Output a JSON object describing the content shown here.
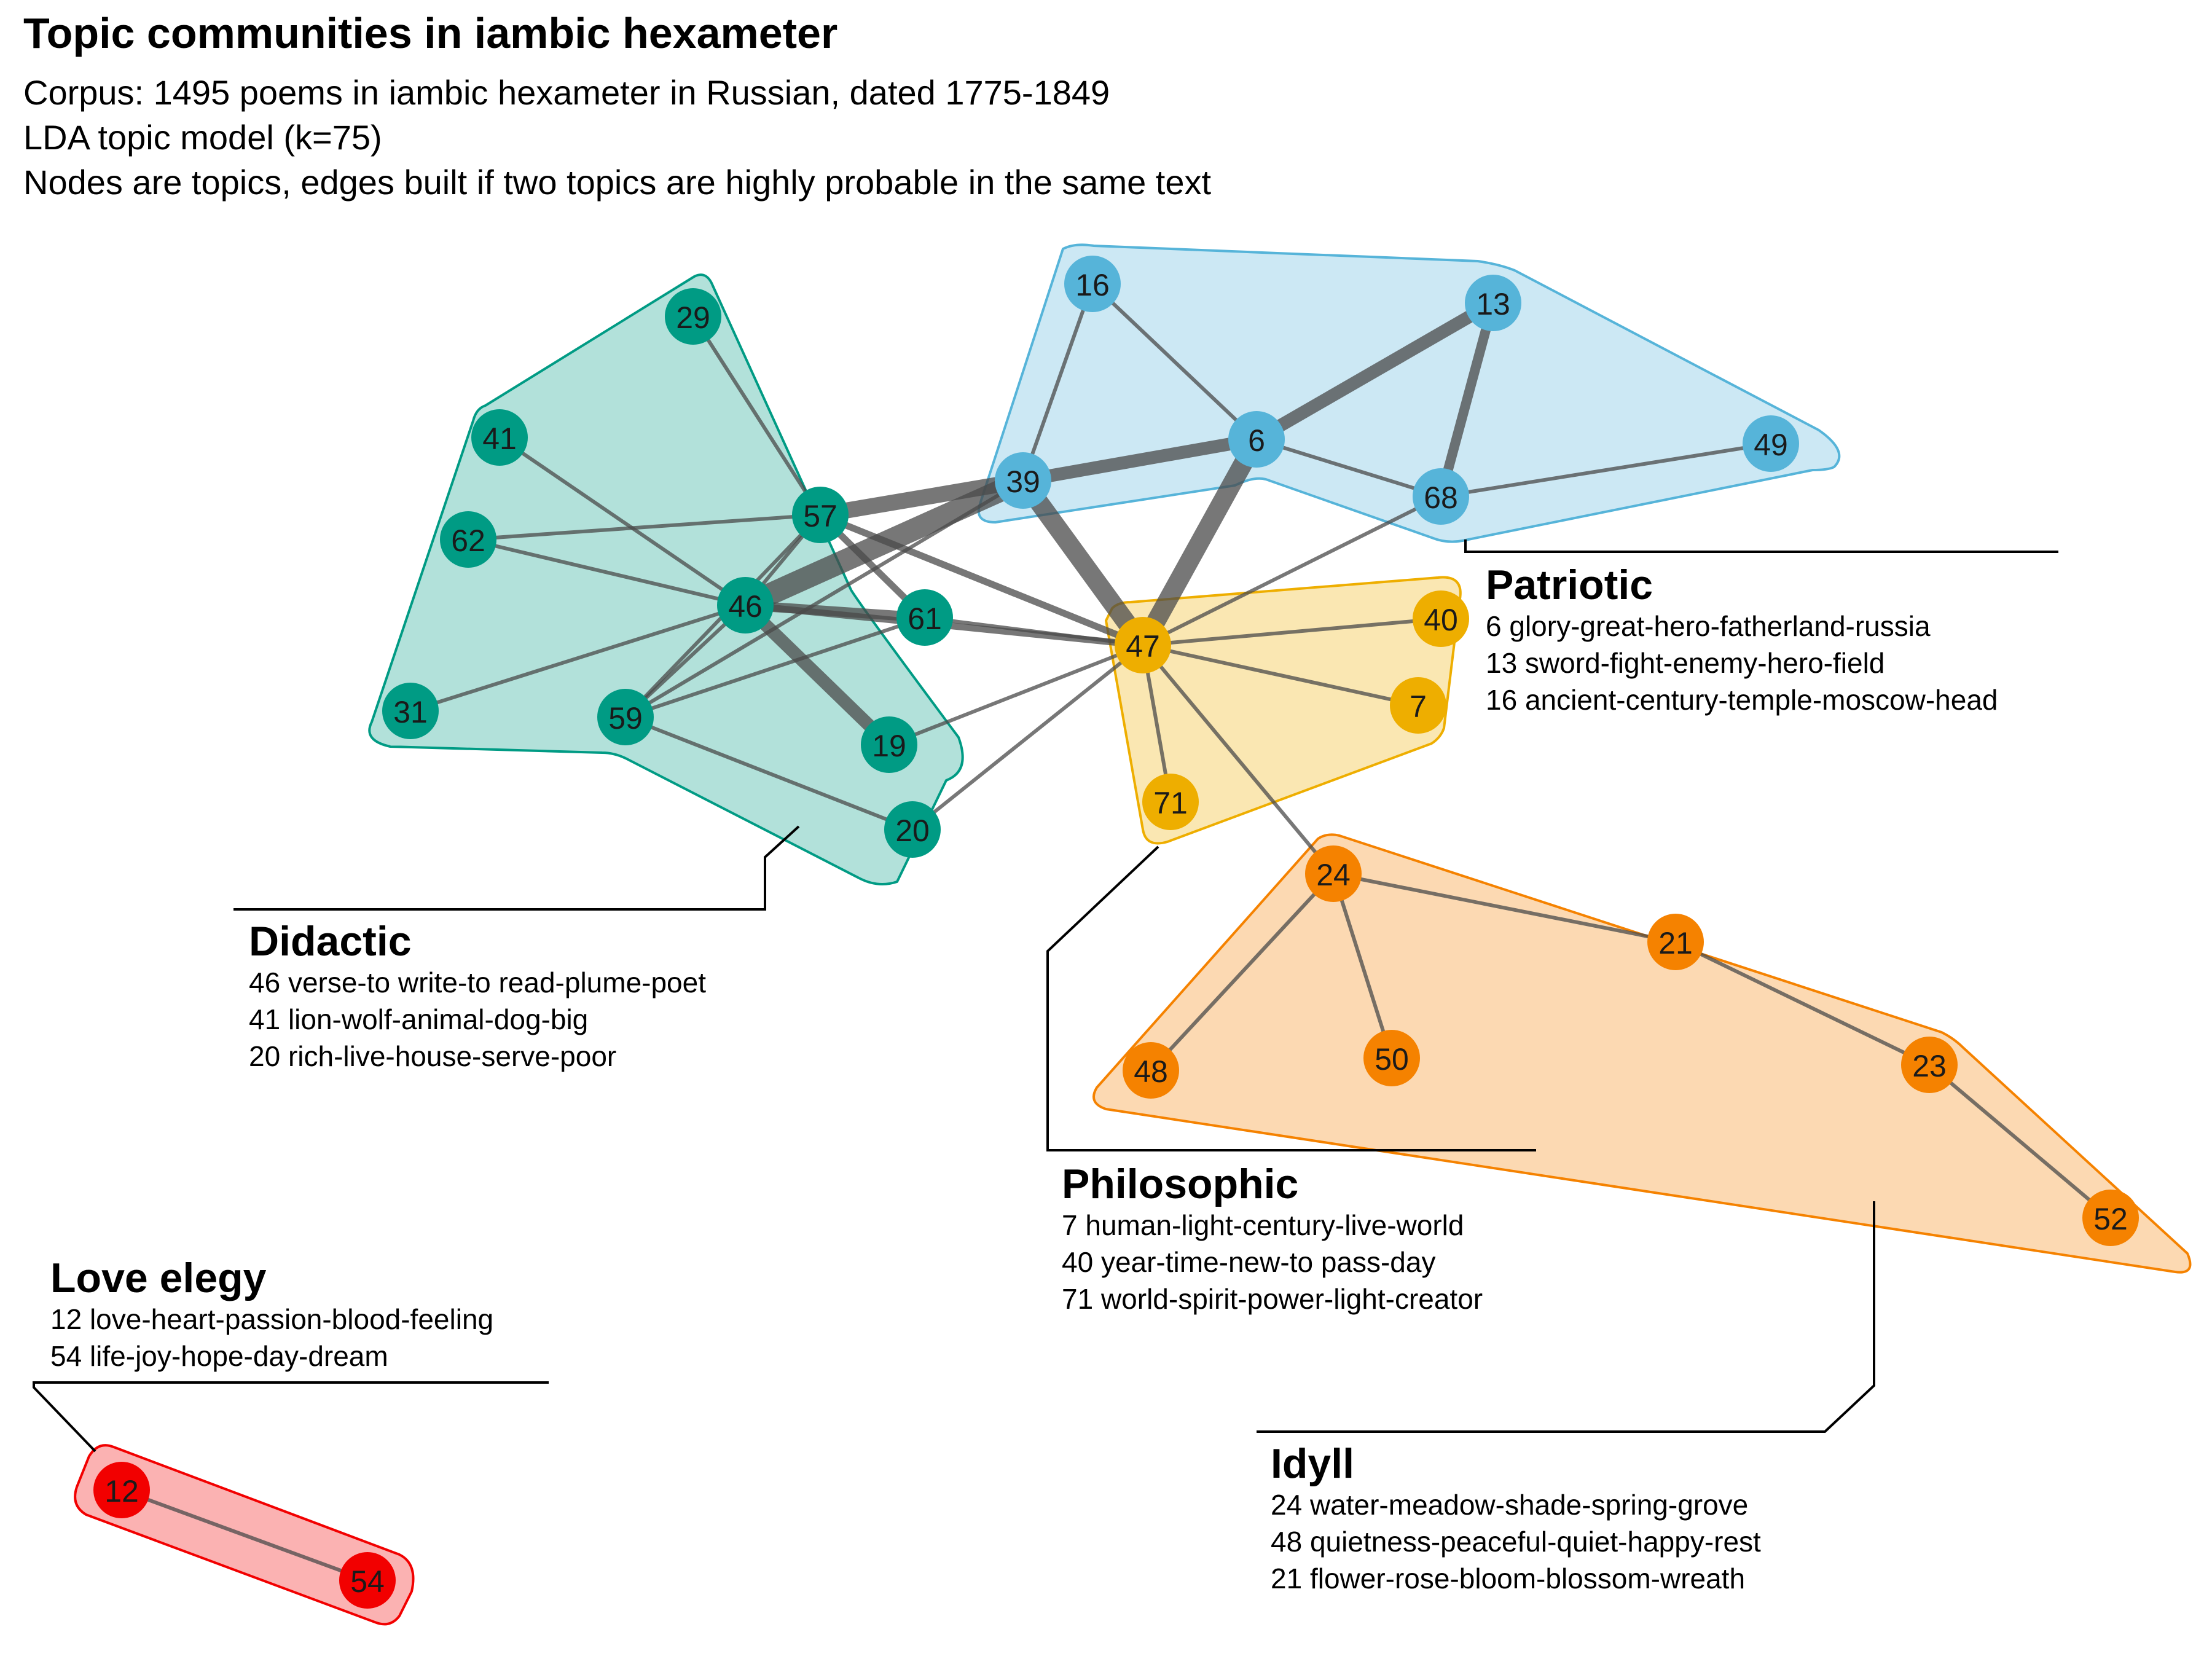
{
  "header": {
    "title": "Topic communities in iambic hexameter",
    "subtitle_lines": [
      "Corpus: 1495 poems in iambic hexameter in Russian, dated 1775-1849",
      "LDA topic model (k=75)",
      "Nodes are topics, edges built if two topics are highly probable in the same text"
    ]
  },
  "colors": {
    "didactic": "#009b84",
    "patriotic": "#56b4d9",
    "philosophic": "#eeae00",
    "idyll": "#f58200",
    "love_elegy": "#f20000",
    "edge": "#4a4a4a"
  },
  "communities": [
    {
      "id": "didactic",
      "name": "Didactic",
      "topics": [
        "46 verse-to write-to read-plume-poet",
        "41 lion-wolf-animal-dog-big",
        "20 rich-live-house-serve-poor"
      ]
    },
    {
      "id": "patriotic",
      "name": "Patriotic",
      "topics": [
        "6 glory-great-hero-fatherland-russia",
        "13 sword-fight-enemy-hero-field",
        "16 ancient-century-temple-moscow-head"
      ]
    },
    {
      "id": "philosophic",
      "name": "Philosophic",
      "topics": [
        "7 human-light-century-live-world",
        "40 year-time-new-to pass-day",
        "71 world-spirit-power-light-creator"
      ]
    },
    {
      "id": "idyll",
      "name": "Idyll",
      "topics": [
        "24 water-meadow-shade-spring-grove",
        "48 quietness-peaceful-quiet-happy-rest",
        "21 flower-rose-bloom-blossom-wreath"
      ]
    },
    {
      "id": "love_elegy",
      "name": "Love elegy",
      "topics": [
        "12 love-heart-passion-blood-feeling",
        "54 life-joy-hope-day-dream"
      ]
    }
  ],
  "nodes": [
    {
      "id": "29",
      "community": "didactic"
    },
    {
      "id": "41",
      "community": "didactic"
    },
    {
      "id": "62",
      "community": "didactic"
    },
    {
      "id": "57",
      "community": "didactic"
    },
    {
      "id": "46",
      "community": "didactic"
    },
    {
      "id": "61",
      "community": "didactic"
    },
    {
      "id": "31",
      "community": "didactic"
    },
    {
      "id": "59",
      "community": "didactic"
    },
    {
      "id": "19",
      "community": "didactic"
    },
    {
      "id": "20",
      "community": "didactic"
    },
    {
      "id": "16",
      "community": "patriotic"
    },
    {
      "id": "13",
      "community": "patriotic"
    },
    {
      "id": "6",
      "community": "patriotic"
    },
    {
      "id": "39",
      "community": "patriotic"
    },
    {
      "id": "68",
      "community": "patriotic"
    },
    {
      "id": "49",
      "community": "patriotic"
    },
    {
      "id": "47",
      "community": "philosophic"
    },
    {
      "id": "40",
      "community": "philosophic"
    },
    {
      "id": "7",
      "community": "philosophic"
    },
    {
      "id": "71",
      "community": "philosophic"
    },
    {
      "id": "24",
      "community": "idyll"
    },
    {
      "id": "21",
      "community": "idyll"
    },
    {
      "id": "48",
      "community": "idyll"
    },
    {
      "id": "50",
      "community": "idyll"
    },
    {
      "id": "23",
      "community": "idyll"
    },
    {
      "id": "52",
      "community": "idyll"
    },
    {
      "id": "12",
      "community": "love_elegy"
    },
    {
      "id": "54",
      "community": "love_elegy"
    }
  ],
  "edges": [
    {
      "source": "46",
      "target": "39",
      "weight": 7
    },
    {
      "source": "39",
      "target": "47",
      "weight": 6
    },
    {
      "source": "6",
      "target": "47",
      "weight": 6
    },
    {
      "source": "57",
      "target": "39",
      "weight": 5
    },
    {
      "source": "39",
      "target": "6",
      "weight": 4
    },
    {
      "source": "6",
      "target": "13",
      "weight": 4
    },
    {
      "source": "13",
      "target": "68",
      "weight": 3
    },
    {
      "source": "46",
      "target": "19",
      "weight": 4
    },
    {
      "source": "46",
      "target": "61",
      "weight": 3
    },
    {
      "source": "57",
      "target": "61",
      "weight": 2
    },
    {
      "source": "57",
      "target": "47",
      "weight": 2
    },
    {
      "source": "46",
      "target": "47",
      "weight": 2
    },
    {
      "source": "16",
      "target": "6",
      "weight": 1
    },
    {
      "source": "16",
      "target": "39",
      "weight": 1
    },
    {
      "source": "6",
      "target": "68",
      "weight": 1
    },
    {
      "source": "68",
      "target": "49",
      "weight": 1
    },
    {
      "source": "68",
      "target": "47",
      "weight": 1
    },
    {
      "source": "29",
      "target": "57",
      "weight": 1
    },
    {
      "source": "41",
      "target": "46",
      "weight": 1
    },
    {
      "source": "62",
      "target": "46",
      "weight": 1
    },
    {
      "source": "62",
      "target": "57",
      "weight": 1
    },
    {
      "source": "31",
      "target": "46",
      "weight": 1
    },
    {
      "source": "57",
      "target": "46",
      "weight": 1
    },
    {
      "source": "57",
      "target": "59",
      "weight": 1
    },
    {
      "source": "46",
      "target": "59",
      "weight": 1
    },
    {
      "source": "59",
      "target": "39",
      "weight": 1
    },
    {
      "source": "59",
      "target": "61",
      "weight": 1
    },
    {
      "source": "59",
      "target": "20",
      "weight": 1
    },
    {
      "source": "61",
      "target": "47",
      "weight": 1
    },
    {
      "source": "19",
      "target": "47",
      "weight": 1
    },
    {
      "source": "20",
      "target": "47",
      "weight": 1
    },
    {
      "source": "47",
      "target": "40",
      "weight": 1
    },
    {
      "source": "47",
      "target": "7",
      "weight": 1
    },
    {
      "source": "47",
      "target": "71",
      "weight": 1
    },
    {
      "source": "47",
      "target": "24",
      "weight": 1
    },
    {
      "source": "24",
      "target": "21",
      "weight": 1
    },
    {
      "source": "24",
      "target": "48",
      "weight": 1
    },
    {
      "source": "24",
      "target": "50",
      "weight": 1
    },
    {
      "source": "21",
      "target": "23",
      "weight": 1
    },
    {
      "source": "23",
      "target": "52",
      "weight": 1
    },
    {
      "source": "12",
      "target": "54",
      "weight": 1
    }
  ]
}
